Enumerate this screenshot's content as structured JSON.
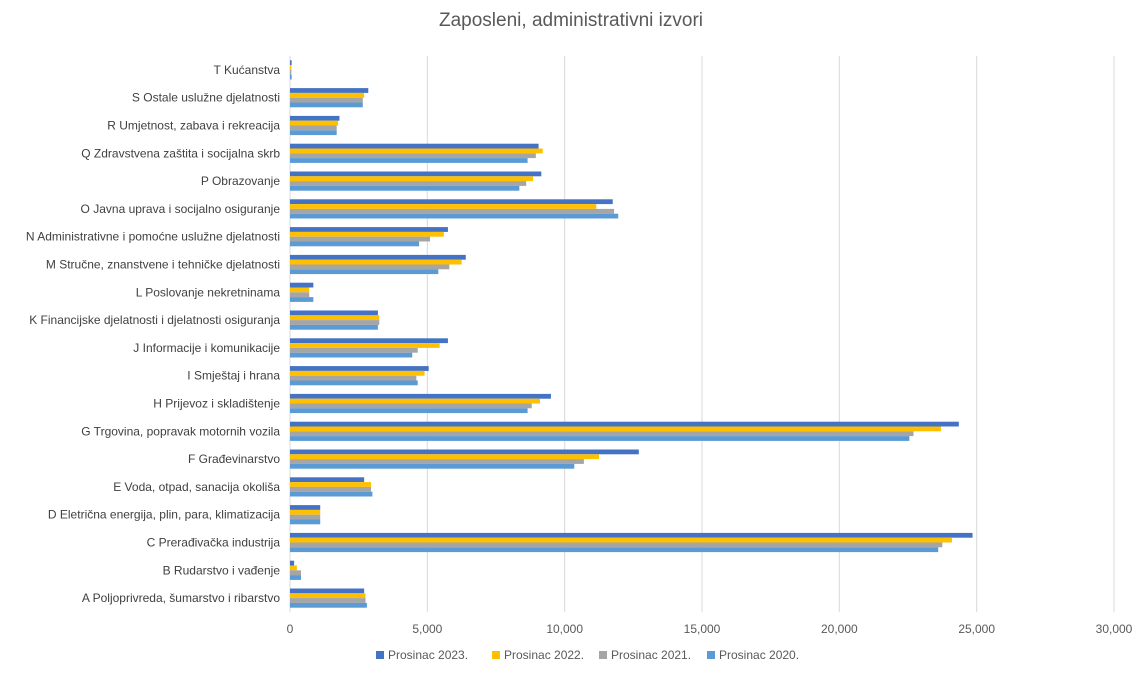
{
  "chart_data": {
    "type": "bar",
    "orientation": "horizontal",
    "title": "Zaposleni, administrativni izvori",
    "xlabel": "",
    "ylabel": "",
    "xlim": [
      0,
      30000
    ],
    "ticks": [
      0,
      5000,
      10000,
      15000,
      20000,
      25000,
      30000
    ],
    "tick_labels": [
      "0",
      "5,000",
      "10,000",
      "15,000",
      "20,000",
      "25,000",
      "30,000"
    ],
    "grid": true,
    "legend_position": "bottom",
    "categories": [
      "T  Kućanstva",
      "S  Ostale uslužne djelatnosti",
      "R  Umjetnost, zabava i rekreacija",
      "Q  Zdravstvena zaštita i socijalna skrb",
      "P  Obrazovanje",
      "O  Javna uprava i socijalno osiguranje",
      "N  Administrativne i pomoćne uslužne djelatnosti",
      "M  Stručne, znanstvene i tehničke djelatnosti",
      "L  Poslovanje nekretninama",
      "K  Financijske djelatnosti i djelatnosti osiguranja",
      "J  Informacije i komunikacije",
      "I  Smještaj i hrana",
      "H  Prijevoz i skladištenje",
      "G  Trgovina, popravak motornih vozila",
      "F  Građevinarstvo",
      "E  Voda, otpad, sanacija okoliša",
      "D  Eletrična energija, plin, para, klimatizacija",
      "C  Prerađivačka industrija",
      "B  Rudarstvo i vađenje",
      "A  Poljoprivreda, šumarstvo i ribarstvo"
    ],
    "series": [
      {
        "name": "Prosinac 2023.",
        "color": "#4472c4",
        "values": [
          60,
          2850,
          1800,
          9050,
          9150,
          11750,
          5750,
          6400,
          850,
          3200,
          5750,
          5050,
          9500,
          24350,
          12700,
          2700,
          1100,
          24850,
          150,
          2700
        ]
      },
      {
        "name": "Prosinac 2022.",
        "color": "#ffc000",
        "values": [
          50,
          2700,
          1750,
          9200,
          8850,
          11150,
          5600,
          6250,
          700,
          3250,
          5450,
          4900,
          9100,
          23700,
          11250,
          2950,
          1100,
          24100,
          250,
          2750
        ]
      },
      {
        "name": "Prosinac 2021.",
        "color": "#a5a5a5",
        "values": [
          50,
          2650,
          1700,
          8950,
          8600,
          11800,
          5100,
          5800,
          700,
          3250,
          4650,
          4600,
          8800,
          22700,
          10700,
          2950,
          1100,
          23750,
          400,
          2750
        ]
      },
      {
        "name": "Prosinac 2020.",
        "color": "#5b9bd5",
        "values": [
          60,
          2650,
          1700,
          8650,
          8350,
          11950,
          4700,
          5400,
          850,
          3200,
          4450,
          4650,
          8650,
          22550,
          10350,
          3000,
          1100,
          23600,
          400,
          2800
        ]
      }
    ]
  }
}
